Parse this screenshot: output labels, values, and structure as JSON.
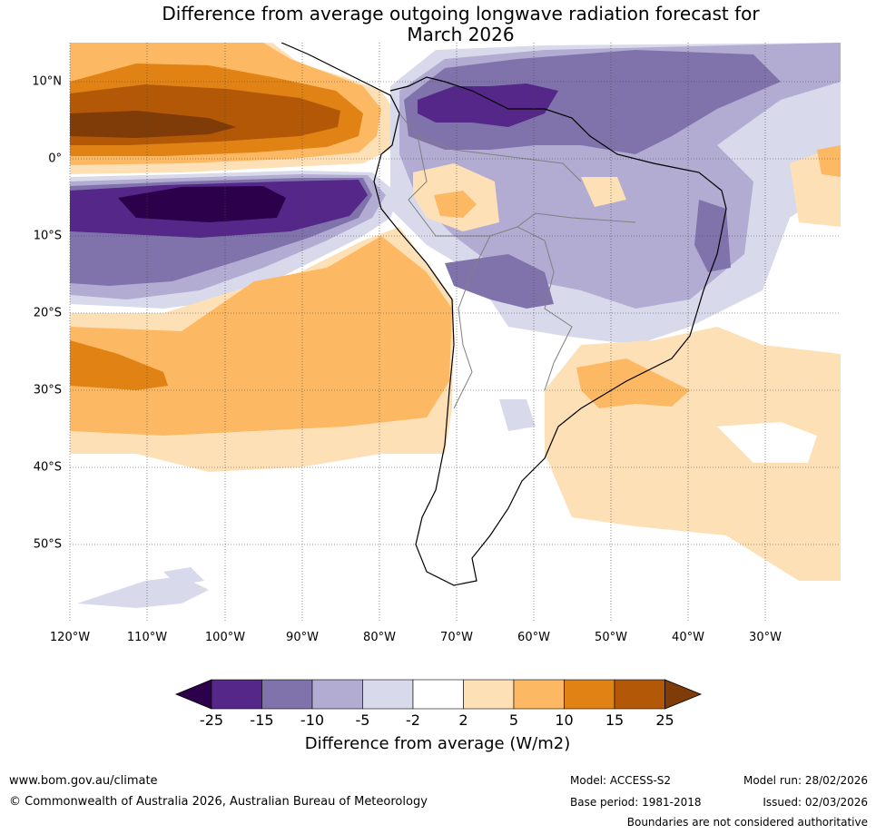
{
  "title": {
    "line1": "Difference from average outgoing longwave radiation forecast for",
    "line2": "March 2026"
  },
  "map": {
    "lat_labels": [
      "10°N",
      "0°",
      "10°S",
      "20°S",
      "30°S",
      "40°S",
      "50°S"
    ],
    "lon_labels": [
      "120°W",
      "110°W",
      "100°W",
      "90°W",
      "80°W",
      "70°W",
      "60°W",
      "50°W",
      "40°W",
      "30°W"
    ],
    "colors": {
      "lt_m25": "#2d004b",
      "m25_m15": "#542788",
      "m15_m10": "#8073ac",
      "m10_m5": "#b2abd2",
      "m5_m2": "#d8daeb",
      "m2_2": "#ffffff",
      "p2_5": "#fee0b6",
      "p5_10": "#fdb863",
      "p10_15": "#e08214",
      "p15_25": "#b35806",
      "gt_25": "#7f3b08"
    }
  },
  "colorbar": {
    "ticks": [
      "-25",
      "-15",
      "-10",
      "-5",
      "-2",
      "2",
      "5",
      "10",
      "15",
      "25"
    ],
    "label": "Difference from average (W/m2)"
  },
  "footer": {
    "url": "www.bom.gov.au/climate",
    "copyright": "© Commonwealth of Australia 2026, Australian Bureau of Meteorology",
    "model": "Model: ACCESS-S2",
    "base_period": "Base period: 1981-2018",
    "model_run": "Model run: 28/02/2026",
    "issued": "Issued: 02/03/2026",
    "disclaimer": "Boundaries are not considered authoritative"
  }
}
